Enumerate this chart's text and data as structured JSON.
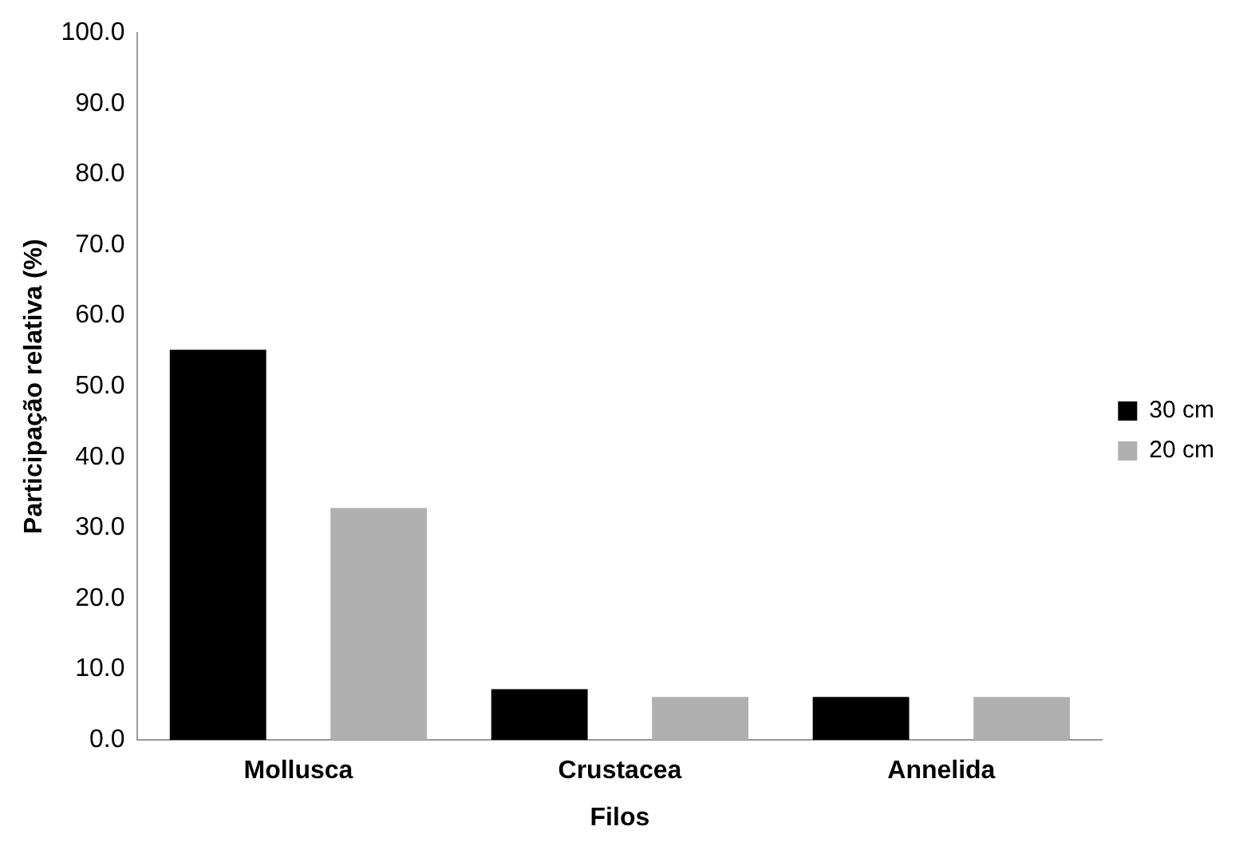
{
  "chart_data": {
    "type": "bar",
    "xlabel": "Filos",
    "ylabel": "Participação relativa (%)",
    "categories": [
      "Mollusca",
      "Crustacea",
      "Annelida"
    ],
    "series": [
      {
        "name": "30 cm",
        "color": "#000000",
        "values": [
          55.2,
          7.2,
          6.1
        ]
      },
      {
        "name": "20 cm",
        "color": "#b0b0b0",
        "values": [
          32.8,
          6.1,
          6.1
        ]
      }
    ],
    "ylim": [
      0,
      100
    ],
    "yticks": [
      {
        "value": 0,
        "label": "0.0"
      },
      {
        "value": 10,
        "label": "10.0"
      },
      {
        "value": 20,
        "label": "20.0"
      },
      {
        "value": 30,
        "label": "30.0"
      },
      {
        "value": 40,
        "label": "40.0"
      },
      {
        "value": 50,
        "label": "50.0"
      },
      {
        "value": 60,
        "label": "60.0"
      },
      {
        "value": 70,
        "label": "70.0"
      },
      {
        "value": 80,
        "label": "80.0"
      },
      {
        "value": 90,
        "label": "90.0"
      },
      {
        "value": 100,
        "label": "100.0"
      }
    ],
    "grid": false,
    "legend": "right"
  }
}
